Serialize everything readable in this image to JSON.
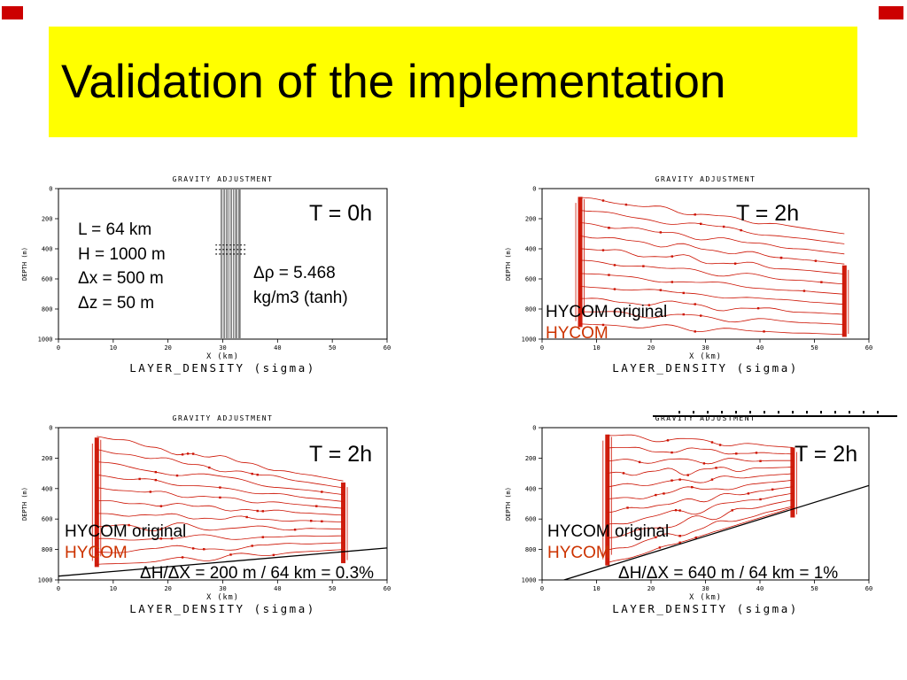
{
  "slide": {
    "banner": {
      "text": "Validation of the implementation",
      "bg": "#ffff00",
      "fg": "#000000"
    },
    "corner_mark_color": "#cc0000",
    "contour_color": "#cc1100",
    "hycom_original_color": "#000000",
    "hycom_color": "#cc3300"
  },
  "chart_data": [
    {
      "type": "line",
      "title": "GRAVITY ADJUSTMENT",
      "xlabel": "X (km)",
      "ylabel": "DEPTH (m)",
      "sublabel": "LAYER_DENSITY (sigma)",
      "xlim": [
        0,
        60
      ],
      "ylim_depth": [
        0,
        1000
      ],
      "xticks": [
        0,
        10,
        20,
        30,
        40,
        50,
        60
      ],
      "yticks": [
        0,
        200,
        400,
        600,
        800,
        1000
      ],
      "initial_front": {
        "x_km": 31.5,
        "halfwidth_km": 1.7,
        "n_lines": 14,
        "transition_depths_m": [
          375,
          405,
          435
        ]
      },
      "annotations": {
        "time": "T = 0h",
        "params": [
          "L = 64 km",
          "H = 1000 m",
          "Δx = 500 m",
          "Δz = 50 m"
        ],
        "density_line1": "Δρ = 5.468",
        "density_line2": "kg/m3 (tanh)"
      }
    },
    {
      "type": "line",
      "title": "GRAVITY ADJUSTMENT",
      "xlabel": "X (km)",
      "ylabel": "DEPTH (m)",
      "sublabel": "LAYER_DENSITY (sigma)",
      "xlim": [
        0,
        60
      ],
      "ylim_depth": [
        0,
        1000
      ],
      "xticks": [
        0,
        10,
        20,
        30,
        40,
        50,
        60
      ],
      "yticks": [
        0,
        200,
        400,
        600,
        800,
        1000
      ],
      "interfaces": {
        "n_interfaces": 11,
        "left_x_km": 7,
        "right_x_km": 55.5,
        "left_depth_range_m": [
          60,
          900
        ],
        "right_depth_range_m": [
          300,
          970
        ],
        "left_bundle_depth_m": [
          55,
          920
        ],
        "right_bundle_depth_m": [
          510,
          985
        ],
        "bottom_slope": null
      },
      "annotations": {
        "time": "T = 2h",
        "legend_original": "HYCOM original",
        "legend_hycom": "HYCOM"
      }
    },
    {
      "type": "line",
      "title": "GRAVITY ADJUSTMENT",
      "xlabel": "X (km)",
      "ylabel": "DEPTH (m)",
      "sublabel": "LAYER_DENSITY (sigma)",
      "xlim": [
        0,
        60
      ],
      "ylim_depth": [
        0,
        1000
      ],
      "xticks": [
        0,
        10,
        20,
        30,
        40,
        50,
        60
      ],
      "yticks": [
        0,
        200,
        400,
        600,
        800,
        1000
      ],
      "interfaces": {
        "n_interfaces": 11,
        "left_x_km": 7,
        "right_x_km": 52,
        "left_depth_range_m": [
          60,
          900
        ],
        "right_depth_range_m": [
          350,
          800
        ],
        "left_bundle_depth_m": [
          65,
          915
        ],
        "right_bundle_depth_m": [
          360,
          890
        ],
        "bottom_slope": {
          "depth_at_x0_m": 975,
          "depth_at_x60_m": 790
        }
      },
      "annotations": {
        "time": "T = 2h",
        "legend_original": "HYCOM original",
        "legend_hycom": "HYCOM",
        "slope_label": "ΔH/ΔX = 200 m / 64 km = 0.3%"
      }
    },
    {
      "type": "line",
      "title": "GRAVITY ADJUSTMENT",
      "xlabel": "X (km)",
      "ylabel": "DEPTH (m)",
      "sublabel": "LAYER_DENSITY (sigma)",
      "xlim": [
        0,
        60
      ],
      "ylim_depth": [
        0,
        1000
      ],
      "xticks": [
        0,
        10,
        20,
        30,
        40,
        50,
        60
      ],
      "yticks": [
        0,
        200,
        400,
        600,
        800,
        1000
      ],
      "interfaces": {
        "n_interfaces": 11,
        "left_x_km": 12,
        "right_x_km": 46,
        "left_depth_range_m": [
          50,
          890
        ],
        "right_depth_range_m": [
          130,
          560
        ],
        "left_bundle_depth_m": [
          45,
          905
        ],
        "right_bundle_depth_m": [
          130,
          590
        ],
        "bottom_slope": {
          "depth_at_x0_m": 1045,
          "depth_at_x60_m": 380
        }
      },
      "annotations": {
        "time": "T = 2h",
        "legend_original": "HYCOM original",
        "legend_hycom": "HYCOM",
        "slope_label": "ΔH/ΔX = 640 m / 64 km = 1%"
      }
    }
  ]
}
